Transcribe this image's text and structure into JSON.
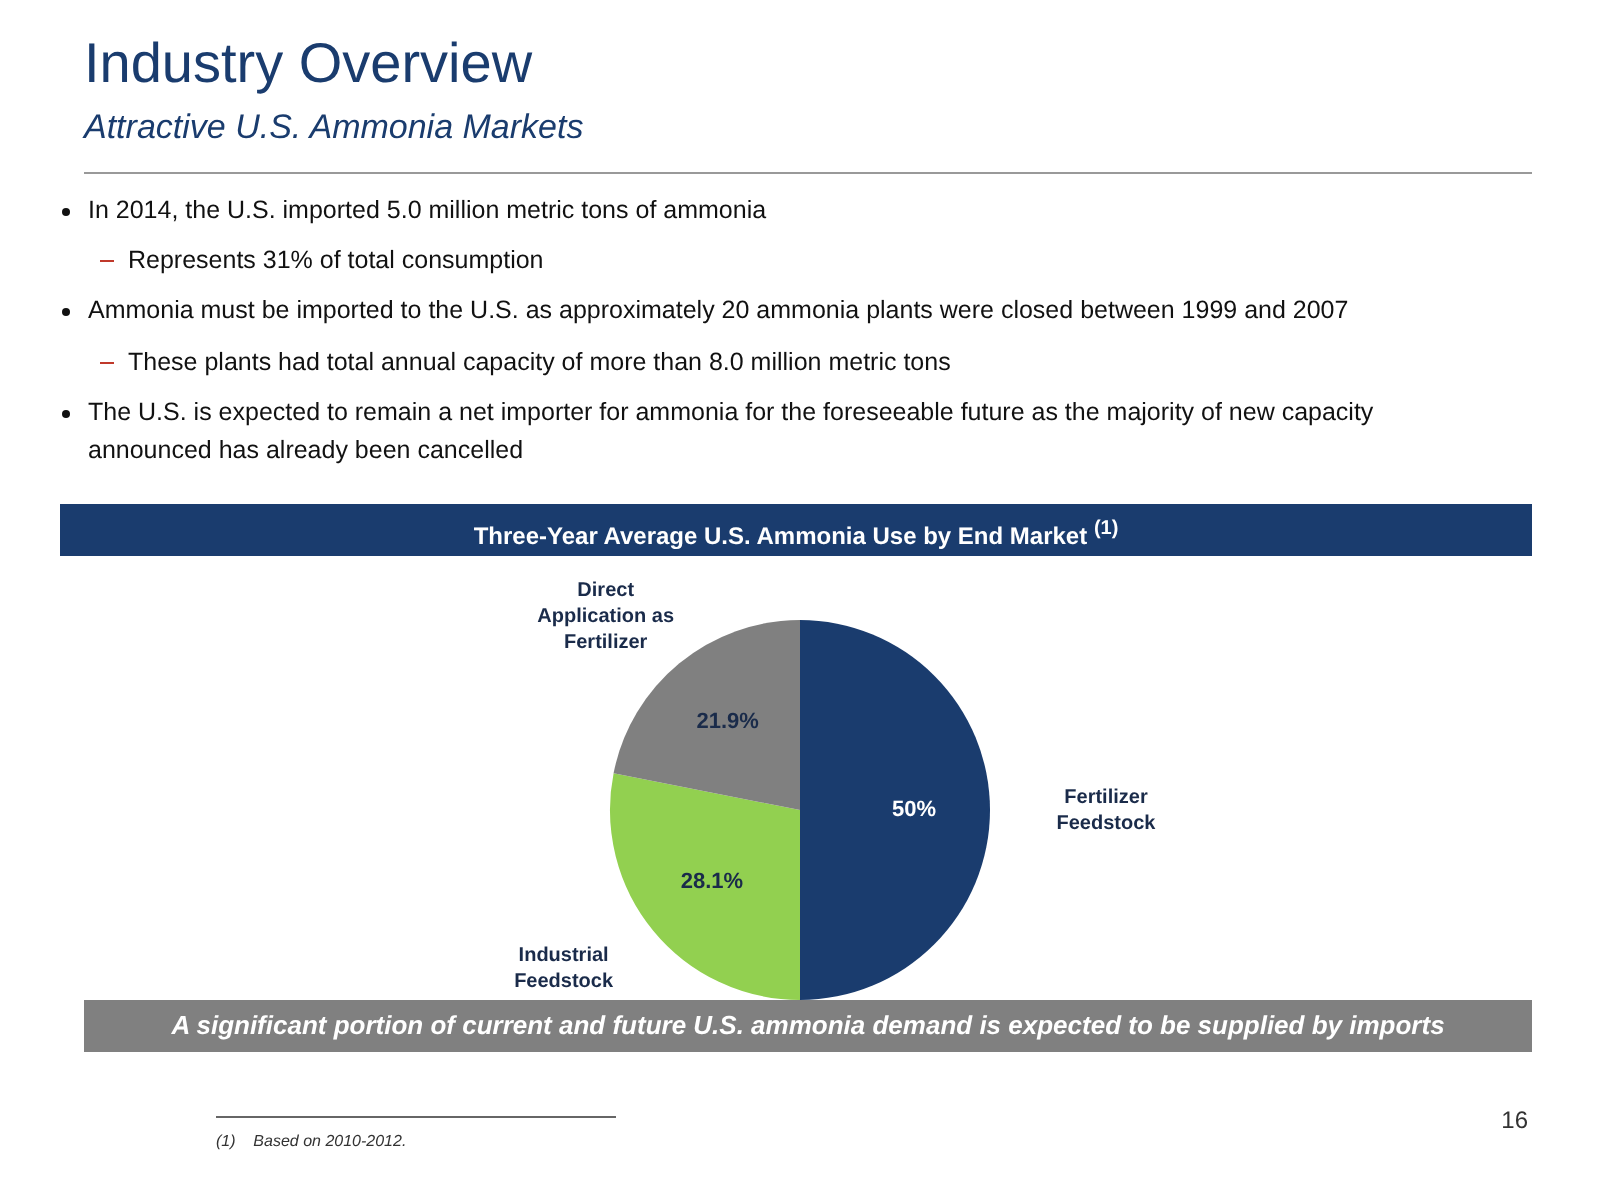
{
  "chart_data": {
    "type": "pie",
    "title": "Industry Overview",
    "subtitle": "Attractive U.S. Ammonia Markets",
    "categories": [
      "Fertilizer Feedstock",
      "Industrial Feedstock",
      "Direct Application as Fertilizer"
    ],
    "values": [
      50,
      28.1,
      21.9
    ],
    "colors": [
      "#1a3c6e",
      "#92d050",
      "#808080"
    ],
    "value_labels": [
      "50%",
      "28.1%",
      "21.9%"
    ],
    "legend": false,
    "annotations": [
      "In 2014, the U.S. imported 5.0 million metric tons of ammonia",
      "Represents 31% of total consumption",
      "Ammonia must be imported to the U.S. as approximately 20 ammonia plants were closed between 1999 and 2007",
      "These plants had total annual capacity of more than 8.0 million metric tons",
      "The U.S. is expected to remain a net importer for ammonia for the foreseeable future as the majority of new capacity announced has already been cancelled",
      "Three-Year Average U.S. Ammonia Use by End Market $^{(1)}$",
      "A significant portion of current and future U.S. ammonia demand is expected to be supplied by imports",
      "(1)    Based on 2010-2012.",
      "16"
    ]
  }
}
